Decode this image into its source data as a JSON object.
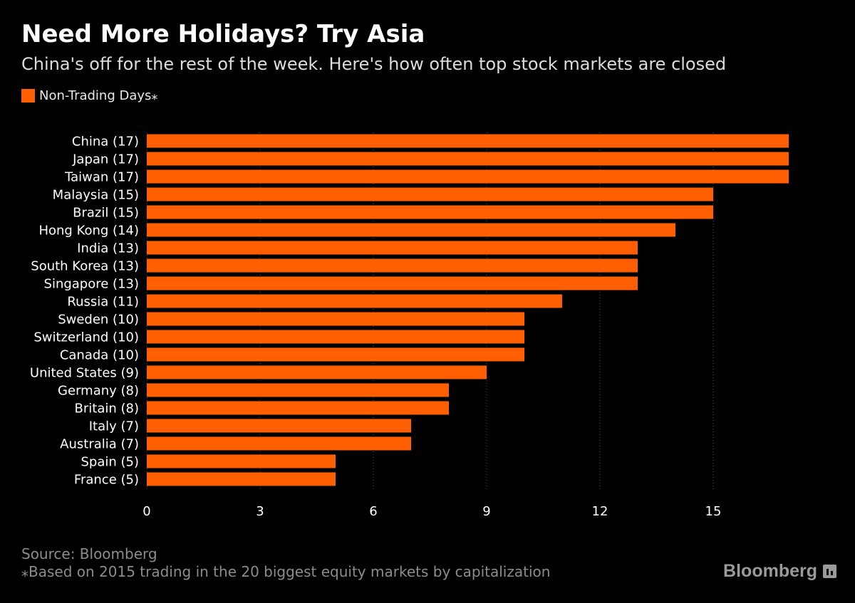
{
  "title": "Need More Holidays? Try Asia",
  "subtitle": "China's off for the rest of the week. Here's how often top stock markets are closed",
  "legend": {
    "label": "Non-Trading Days⁎",
    "color": "#ff5f00"
  },
  "source": "Source: Bloomberg",
  "footnote": "⁎Based on 2015 trading in the 20 biggest equity markets by capitalization",
  "brand": {
    "name": "Bloomberg",
    "icon": "bloomberg-terminal-icon"
  },
  "colors": {
    "background": "#000000",
    "bar": "#ff5f00",
    "text": "#ffffff",
    "muted": "#8c8c8c",
    "grid": "#555555"
  },
  "chart_data": {
    "type": "bar",
    "orientation": "horizontal",
    "categories": [
      "China (17)",
      "Japan (17)",
      "Taiwan (17)",
      "Malaysia (15)",
      "Brazil (15)",
      "Hong Kong (14)",
      "India (13)",
      "South Korea (13)",
      "Singapore (13)",
      "Russia (11)",
      "Sweden (10)",
      "Switzerland (10)",
      "Canada (10)",
      "United States (9)",
      "Germany (8)",
      "Britain (8)",
      "Italy (7)",
      "Australia (7)",
      "Spain (5)",
      "France (5)"
    ],
    "series": [
      {
        "name": "Non-Trading Days⁎",
        "values": [
          17,
          17,
          17,
          15,
          15,
          14,
          13,
          13,
          13,
          11,
          10,
          10,
          10,
          9,
          8,
          8,
          7,
          7,
          5,
          5
        ]
      }
    ],
    "x_ticks": [
      0,
      3,
      6,
      9,
      12,
      15
    ],
    "xlim": [
      0,
      18
    ],
    "grid": "vertical-dotted",
    "legend_position": "top-left"
  }
}
